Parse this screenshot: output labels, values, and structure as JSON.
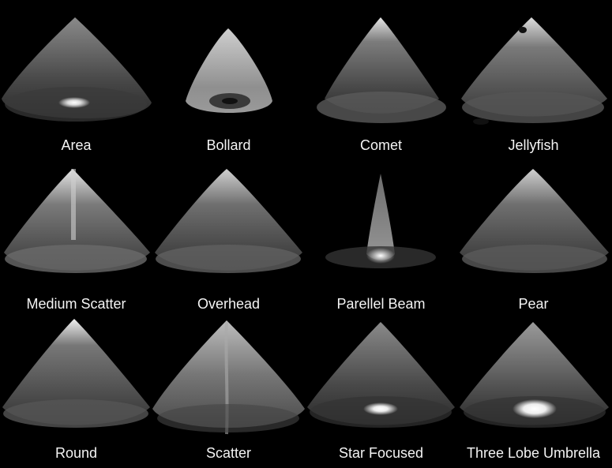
{
  "presets": [
    {
      "id": "area",
      "label": "Area"
    },
    {
      "id": "bollard",
      "label": "Bollard"
    },
    {
      "id": "comet",
      "label": "Comet"
    },
    {
      "id": "jellyfish",
      "label": "Jellyfish"
    },
    {
      "id": "medium-scatter",
      "label": "Medium Scatter"
    },
    {
      "id": "overhead",
      "label": "Overhead"
    },
    {
      "id": "parellel-beam",
      "label": "Parellel Beam"
    },
    {
      "id": "pear",
      "label": "Pear"
    },
    {
      "id": "round",
      "label": "Round"
    },
    {
      "id": "scatter",
      "label": "Scatter"
    },
    {
      "id": "star-focused",
      "label": "Star Focused"
    },
    {
      "id": "three-lobe-umbrella",
      "label": "Three Lobe Umbrella"
    }
  ]
}
